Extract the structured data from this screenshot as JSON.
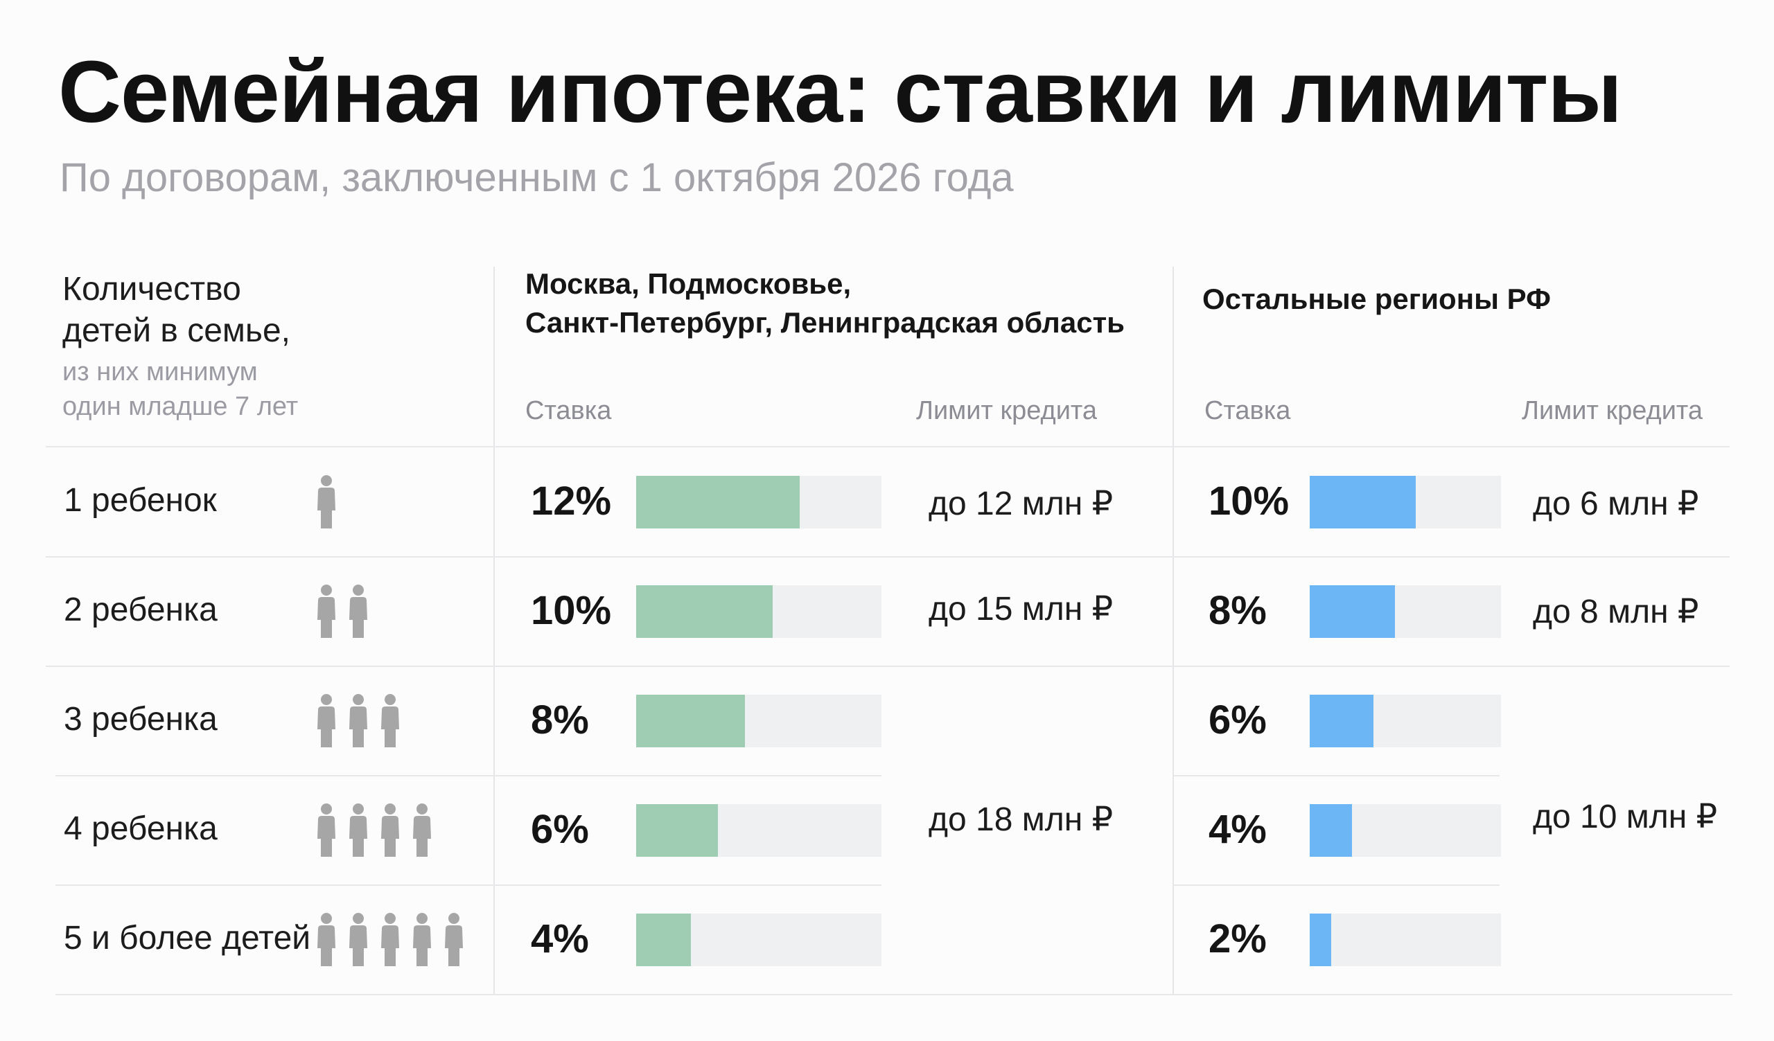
{
  "header": {
    "title": "Семейная ипотека: ставки и лимиты",
    "subtitle": "По договорам, заключенным с 1 октября 2026 года"
  },
  "table": {
    "row_header": {
      "line1": "Количество",
      "line2": "детей в семье,",
      "note1": "из них минимум",
      "note2": "один младше 7 лет"
    },
    "regions": [
      {
        "name_line1": "Москва, Подмосковье,",
        "name_line2": "Санкт-Петербург, Ленинградская область",
        "rate_header": "Ставка",
        "limit_header": "Лимит кредита",
        "color": "#9ecdb3",
        "limits": [
          "до 12 млн ₽",
          "до 15 млн ₽",
          "до 18 млн ₽"
        ]
      },
      {
        "name_line1": "Остальные регионы РФ",
        "name_line2": "",
        "rate_header": "Ставка",
        "limit_header": "Лимит кредита",
        "color": "#6cb6f6",
        "limits": [
          "до 6 млн ₽",
          "до 8 млн ₽",
          "до 10 млн ₽"
        ]
      }
    ],
    "icon": "person-icon"
  },
  "chart_data": {
    "type": "bar",
    "categories": [
      "1 ребенок",
      "2 ребенка",
      "3 ребенка",
      "4 ребенка",
      "5 и более детей"
    ],
    "children_counts": [
      1,
      2,
      3,
      4,
      5
    ],
    "series": [
      {
        "name": "Москва, Подмосковье, Санкт-Петербург, Ленинградская область",
        "values": [
          12,
          10,
          8,
          6,
          4
        ],
        "labels": [
          "12%",
          "10%",
          "8%",
          "6%",
          "4%"
        ],
        "color": "#9ecdb3"
      },
      {
        "name": "Остальные регионы РФ",
        "values": [
          10,
          8,
          6,
          4,
          2
        ],
        "labels": [
          "10%",
          "8%",
          "6%",
          "4%",
          "2%"
        ],
        "color": "#6cb6f6"
      }
    ],
    "xlim": [
      0,
      18
    ]
  }
}
